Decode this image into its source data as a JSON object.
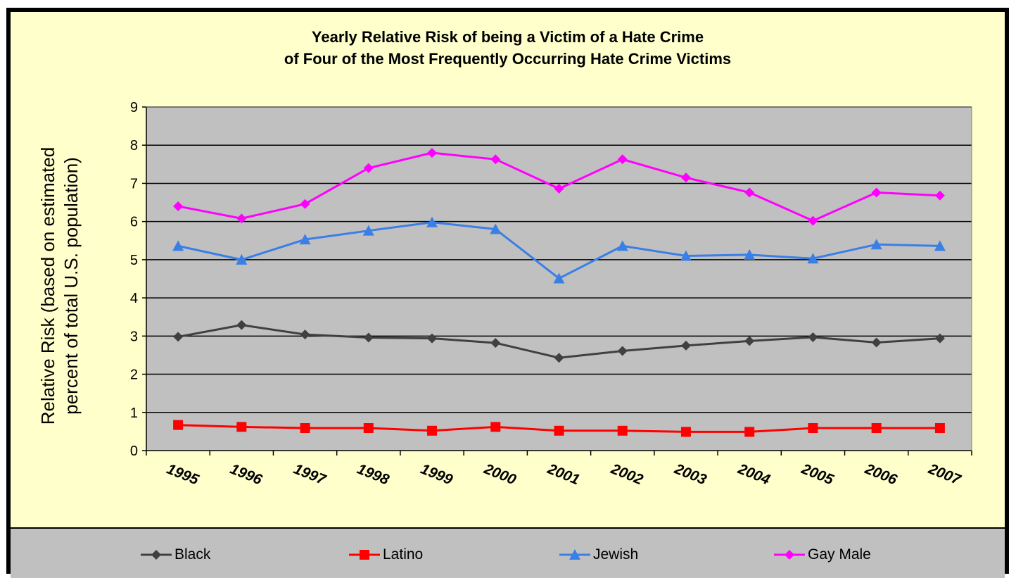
{
  "chart_data": {
    "type": "line",
    "title": [
      "Yearly Relative Risk of being a Victim of a Hate Crime",
      "of Four of the Most Frequently Occurring Hate Crime Victims"
    ],
    "ylabel": [
      "Relative Risk (based on estimated",
      "percent of total U.S. population)"
    ],
    "xlabel": "",
    "categories": [
      "1995",
      "1996",
      "1997",
      "1998",
      "1999",
      "2000",
      "2001",
      "2002",
      "2003",
      "2004",
      "2005",
      "2006",
      "2007"
    ],
    "ylim": [
      0,
      9
    ],
    "yticks": [
      0,
      1,
      2,
      3,
      4,
      5,
      6,
      7,
      8,
      9
    ],
    "grid": true,
    "legend_position": "bottom",
    "plot_background": "#c0c0c0",
    "figure_background": "#ffffcc",
    "series": [
      {
        "name": "Black",
        "color": "#404040",
        "marker": "diamond",
        "values": [
          2.98,
          3.29,
          3.04,
          2.96,
          2.94,
          2.82,
          2.43,
          2.61,
          2.75,
          2.87,
          2.97,
          2.83,
          2.94
        ]
      },
      {
        "name": "Latino",
        "color": "#ff0000",
        "marker": "square",
        "values": [
          0.67,
          0.62,
          0.59,
          0.59,
          0.52,
          0.62,
          0.52,
          0.52,
          0.49,
          0.49,
          0.59,
          0.59,
          0.59
        ]
      },
      {
        "name": "Jewish",
        "color": "#3a7fe6",
        "marker": "triangle",
        "values": [
          5.36,
          5.0,
          5.53,
          5.76,
          5.98,
          5.8,
          4.51,
          5.36,
          5.1,
          5.13,
          5.03,
          5.4,
          5.36
        ]
      },
      {
        "name": "Gay Male",
        "color": "#ff00ff",
        "marker": "diamond",
        "values": [
          6.4,
          6.08,
          6.46,
          7.4,
          7.8,
          7.63,
          6.86,
          7.63,
          7.15,
          6.76,
          6.02,
          6.76,
          6.68
        ]
      }
    ]
  }
}
